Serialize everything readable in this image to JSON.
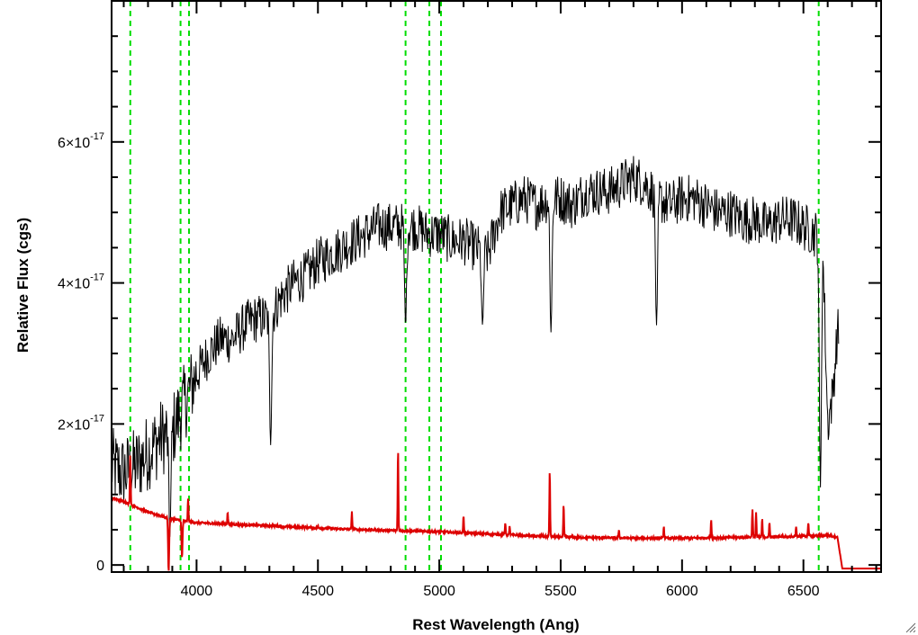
{
  "chart_data": {
    "type": "line",
    "title": "",
    "xlabel": "Rest Wavelength (Ang)",
    "ylabel": "Relative Flux (cgs)",
    "xlim": [
      3650,
      6820
    ],
    "ylim": [
      -1e-18,
      8e-17
    ],
    "x_major_ticks": [
      4000,
      4500,
      5000,
      5500,
      6000,
      6500
    ],
    "x_minor_step": 100,
    "y_major_ticks": [
      {
        "value": 0,
        "mantissa": "0",
        "exponent": ""
      },
      {
        "value": 2e-17,
        "mantissa": "2×10",
        "exponent": "-17"
      },
      {
        "value": 4e-17,
        "mantissa": "4×10",
        "exponent": "-17"
      },
      {
        "value": 6e-17,
        "mantissa": "6×10",
        "exponent": "-17"
      }
    ],
    "y_minor_step": 5e-18,
    "grid": false,
    "vertical_markers": {
      "color": "#00dd00",
      "style": "dashed",
      "x": [
        3727,
        3934,
        3969,
        4861,
        4959,
        5007,
        6563
      ]
    },
    "series": [
      {
        "color": "#000000",
        "style": "noisy-spectrum",
        "x": [
          3650,
          3700,
          3750,
          3800,
          3850,
          3900,
          3950,
          4000,
          4050,
          4100,
          4150,
          4200,
          4250,
          4300,
          4350,
          4400,
          4450,
          4500,
          4550,
          4600,
          4650,
          4700,
          4750,
          4800,
          4850,
          4900,
          4950,
          5000,
          5050,
          5100,
          5150,
          5200,
          5250,
          5300,
          5350,
          5400,
          5450,
          5500,
          5550,
          5600,
          5650,
          5700,
          5750,
          5800,
          5850,
          5900,
          5950,
          6000,
          6050,
          6100,
          6150,
          6200,
          6250,
          6300,
          6350,
          6400,
          6450,
          6500,
          6550,
          6580,
          6600,
          6620,
          6640
        ],
        "y": [
          1.4e-17,
          1.3e-17,
          1.4e-17,
          1.6e-17,
          1.8e-17,
          1.9e-17,
          2.3e-17,
          2.7e-17,
          3e-17,
          3.2e-17,
          3.2e-17,
          3.4e-17,
          3.5e-17,
          3.5e-17,
          3.8e-17,
          4e-17,
          4.1e-17,
          4.3e-17,
          4.4e-17,
          4.5e-17,
          4.6e-17,
          4.7e-17,
          4.8e-17,
          4.8e-17,
          4.8e-17,
          4.8e-17,
          4.7e-17,
          4.7e-17,
          4.6e-17,
          4.6e-17,
          4.5e-17,
          4.4e-17,
          5e-17,
          5.1e-17,
          5.2e-17,
          5.1e-17,
          5.2e-17,
          5.2e-17,
          5.1e-17,
          5.3e-17,
          5.3e-17,
          5.3e-17,
          5.4e-17,
          5.5e-17,
          5.4e-17,
          5.2e-17,
          5.1e-17,
          5.2e-17,
          5.2e-17,
          5.1e-17,
          5e-17,
          5e-17,
          4.9e-17,
          4.9e-17,
          4.8e-17,
          4.9e-17,
          4.9e-17,
          4.8e-17,
          4.7e-17,
          4.5e-17,
          2e-17,
          2.4e-17,
          3.3e-17
        ],
        "noise_amplitude": 3.5e-18,
        "absorption_dips": [
          {
            "x": 3890,
            "y": 4e-18
          },
          {
            "x": 4305,
            "y": 1.7e-17
          },
          {
            "x": 4861,
            "y": 3.4e-17
          },
          {
            "x": 5178,
            "y": 3.4e-17
          },
          {
            "x": 5460,
            "y": 3.3e-17
          },
          {
            "x": 5895,
            "y": 3.4e-17
          },
          {
            "x": 6570,
            "y": 1.1e-17
          }
        ],
        "ends_at": 6645
      },
      {
        "color": "#dd0000",
        "style": "model-with-emission-lines",
        "continuum_x": [
          3650,
          3700,
          3800,
          3900,
          4000,
          4200,
          4400,
          4600,
          4800,
          5000,
          5200,
          5400,
          5600,
          5800,
          6000,
          6200,
          6400,
          6600,
          6640,
          6660,
          6820
        ],
        "continuum_y": [
          9.5e-18,
          9e-18,
          7.5e-18,
          6.5e-18,
          6e-18,
          5.7e-18,
          5.4e-18,
          5.1e-18,
          4.9e-18,
          4.7e-18,
          4.4e-18,
          4.1e-18,
          3.9e-18,
          3.8e-18,
          3.8e-18,
          3.9e-18,
          4e-18,
          4.2e-18,
          4e-18,
          -5e-19,
          -5e-19
        ],
        "emission_lines": [
          {
            "x": 3727,
            "peak": 1.6e-17
          },
          {
            "x": 3965,
            "peak": 9.5e-18
          },
          {
            "x": 4128,
            "peak": 7.5e-18
          },
          {
            "x": 4500,
            "peak": 5.5e-18
          },
          {
            "x": 4640,
            "peak": 7.5e-18
          },
          {
            "x": 4830,
            "peak": 1.65e-17
          },
          {
            "x": 5100,
            "peak": 7e-18
          },
          {
            "x": 5272,
            "peak": 6e-18
          },
          {
            "x": 5290,
            "peak": 5.5e-18
          },
          {
            "x": 5455,
            "peak": 1.35e-17
          },
          {
            "x": 5512,
            "peak": 8.5e-18
          },
          {
            "x": 5740,
            "peak": 5e-18
          },
          {
            "x": 5925,
            "peak": 5.5e-18
          },
          {
            "x": 6120,
            "peak": 6.5e-18
          },
          {
            "x": 6290,
            "peak": 8e-18
          },
          {
            "x": 6305,
            "peak": 7.5e-18
          },
          {
            "x": 6330,
            "peak": 6.5e-18
          },
          {
            "x": 6360,
            "peak": 6e-18
          },
          {
            "x": 6470,
            "peak": 5.5e-18
          },
          {
            "x": 6520,
            "peak": 6e-18
          }
        ],
        "absorption_dips": [
          {
            "x": 3885,
            "y": -1e-18
          },
          {
            "x": 3940,
            "y": 1e-18
          }
        ]
      }
    ]
  }
}
